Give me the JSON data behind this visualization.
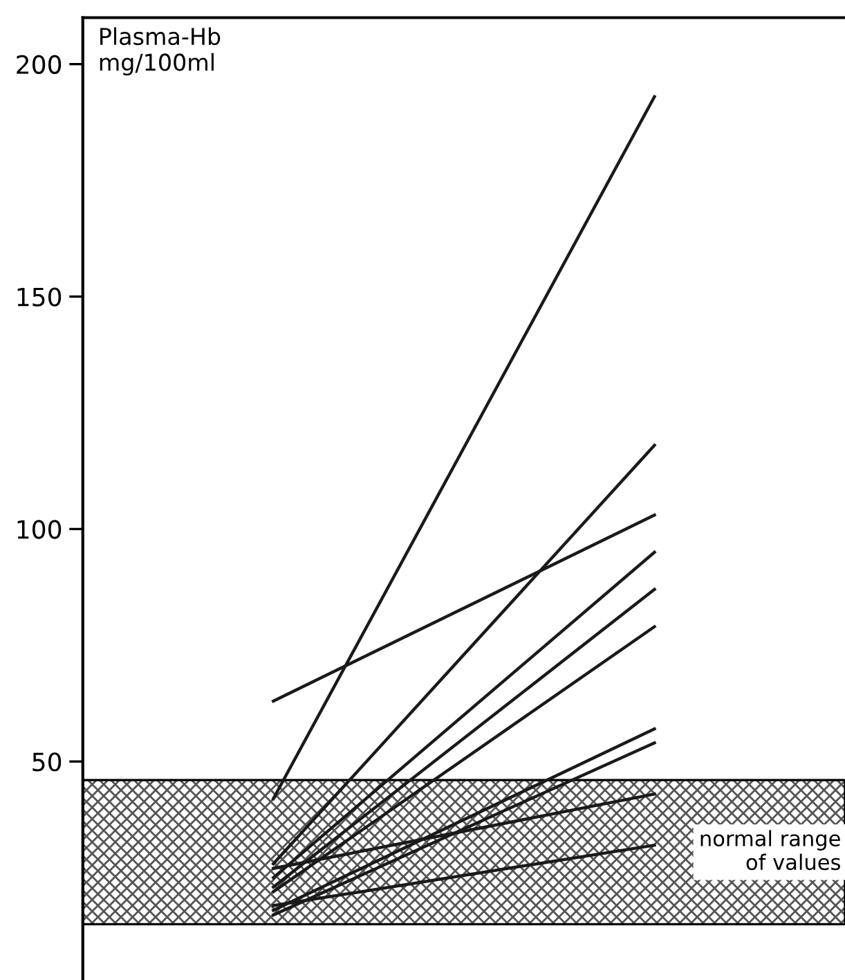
{
  "chart_data": {
    "type": "line",
    "ylabel": "Plasma-Hb\nmg/100ml",
    "categories": [
      null,
      null
    ],
    "series": [
      {
        "color": "#1a1a1a",
        "values": [
          42,
          193
        ]
      },
      {
        "color": "#1a1a1a",
        "values": [
          63,
          103
        ]
      },
      {
        "color": "#1a1a1a",
        "values": [
          28,
          118
        ]
      },
      {
        "color": "#1a1a1a",
        "values": [
          25,
          95
        ]
      },
      {
        "color": "#1a1a1a",
        "values": [
          23,
          87
        ]
      },
      {
        "color": "#1a1a1a",
        "values": [
          22,
          79
        ]
      },
      {
        "color": "#1a1a1a",
        "values": [
          18,
          57
        ]
      },
      {
        "color": "#1a1a1a",
        "values": [
          17,
          54
        ]
      },
      {
        "color": "#1a1a1a",
        "values": [
          27,
          43
        ]
      },
      {
        "color": "#1a1a1a",
        "values": [
          19,
          32
        ]
      }
    ],
    "ylim": [
      3,
      210
    ],
    "yticks": [
      50,
      100,
      150,
      200
    ],
    "grid": false,
    "marker": "none",
    "line_style": "solid",
    "bands": [
      {
        "axis": "y",
        "from": 15,
        "to": 46,
        "label": "normal range\nof values",
        "color": "#555555"
      }
    ]
  }
}
